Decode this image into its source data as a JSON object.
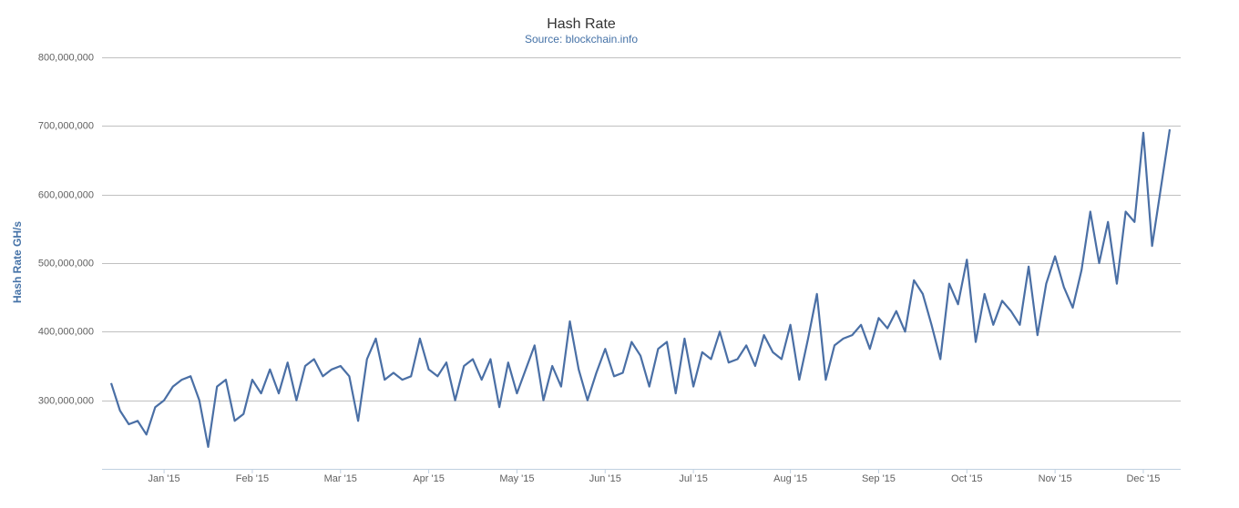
{
  "chart_data": {
    "type": "line",
    "title": "Hash Rate",
    "subtitle": "Source: blockchain.info",
    "y_label": "Hash Rate GH/s",
    "color": "#4a6fa5",
    "grid": true,
    "ylim": [
      200000000,
      800000000
    ],
    "yticks": [
      {
        "value": 300000000,
        "label": "300,000,000"
      },
      {
        "value": 400000000,
        "label": "400,000,000"
      },
      {
        "value": 500000000,
        "label": "500,000,000"
      },
      {
        "value": 600000000,
        "label": "600,000,000"
      },
      {
        "value": 700000000,
        "label": "700,000,000"
      },
      {
        "value": 800000000,
        "label": "800,000,000"
      }
    ],
    "categories": [
      null,
      null,
      null,
      null,
      null,
      null,
      "Jan '15",
      null,
      null,
      null,
      null,
      null,
      null,
      null,
      null,
      null,
      "Feb '15",
      null,
      null,
      null,
      null,
      null,
      null,
      null,
      null,
      null,
      "Mar '15",
      null,
      null,
      null,
      null,
      null,
      null,
      null,
      null,
      null,
      "Apr '15",
      null,
      null,
      null,
      null,
      null,
      null,
      null,
      null,
      null,
      "May '15",
      null,
      null,
      null,
      null,
      null,
      null,
      null,
      null,
      null,
      "Jun '15",
      null,
      null,
      null,
      null,
      null,
      null,
      null,
      null,
      null,
      "Jul '15",
      null,
      null,
      null,
      null,
      null,
      null,
      null,
      null,
      null,
      null,
      "Aug '15",
      null,
      null,
      null,
      null,
      null,
      null,
      null,
      null,
      null,
      "Sep '15",
      null,
      null,
      null,
      null,
      null,
      null,
      null,
      null,
      null,
      "Oct '15",
      null,
      null,
      null,
      null,
      null,
      null,
      null,
      null,
      null,
      "Nov '15",
      null,
      null,
      null,
      null,
      null,
      null,
      null,
      null,
      null,
      "Dec '15",
      null,
      null,
      null
    ],
    "values": [
      325000000,
      285000000,
      265000000,
      270000000,
      250000000,
      290000000,
      300000000,
      320000000,
      330000000,
      335000000,
      300000000,
      232000000,
      320000000,
      330000000,
      270000000,
      280000000,
      330000000,
      310000000,
      345000000,
      310000000,
      355000000,
      300000000,
      350000000,
      360000000,
      335000000,
      345000000,
      350000000,
      335000000,
      270000000,
      360000000,
      390000000,
      330000000,
      340000000,
      330000000,
      335000000,
      390000000,
      345000000,
      335000000,
      355000000,
      300000000,
      350000000,
      360000000,
      330000000,
      360000000,
      290000000,
      355000000,
      310000000,
      345000000,
      380000000,
      300000000,
      350000000,
      320000000,
      415000000,
      345000000,
      300000000,
      340000000,
      375000000,
      335000000,
      340000000,
      385000000,
      365000000,
      320000000,
      375000000,
      385000000,
      310000000,
      390000000,
      320000000,
      370000000,
      360000000,
      400000000,
      355000000,
      360000000,
      380000000,
      350000000,
      395000000,
      370000000,
      360000000,
      410000000,
      330000000,
      390000000,
      455000000,
      330000000,
      380000000,
      390000000,
      395000000,
      410000000,
      375000000,
      420000000,
      405000000,
      430000000,
      400000000,
      475000000,
      455000000,
      410000000,
      360000000,
      470000000,
      440000000,
      505000000,
      385000000,
      455000000,
      410000000,
      445000000,
      430000000,
      410000000,
      495000000,
      395000000,
      470000000,
      510000000,
      465000000,
      435000000,
      490000000,
      575000000,
      500000000,
      560000000,
      470000000,
      575000000,
      560000000,
      690000000,
      525000000,
      610000000,
      695000000
    ]
  }
}
